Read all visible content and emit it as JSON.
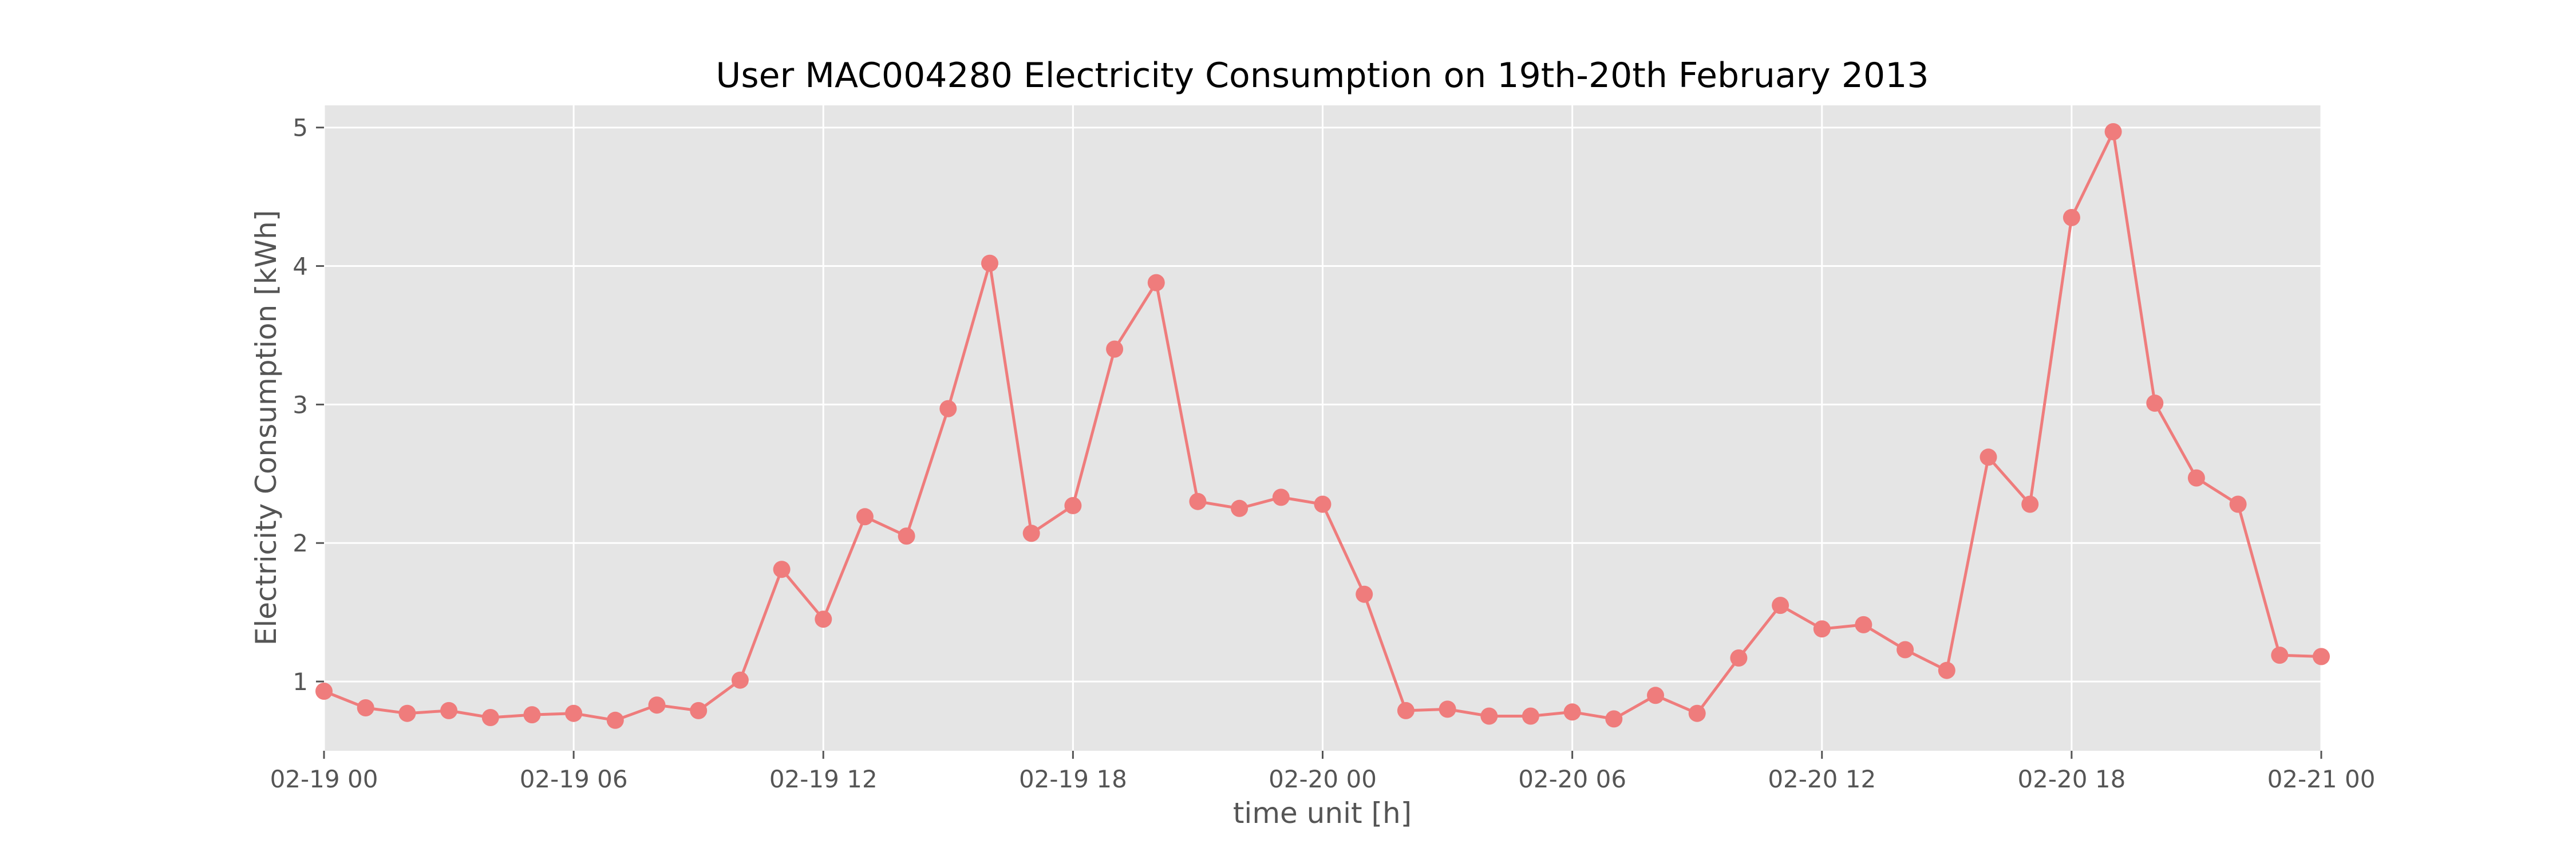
{
  "chart_data": {
    "type": "line",
    "title": "User MAC004280  Electricity Consumption on 19th-20th February 2013",
    "xlabel": "time unit [h]",
    "ylabel": "Electricity Consumption [kWh]",
    "x_unit": "hour",
    "x": [
      "2013-02-19 00:00",
      "2013-02-19 01:00",
      "2013-02-19 02:00",
      "2013-02-19 03:00",
      "2013-02-19 04:00",
      "2013-02-19 05:00",
      "2013-02-19 06:00",
      "2013-02-19 07:00",
      "2013-02-19 08:00",
      "2013-02-19 09:00",
      "2013-02-19 10:00",
      "2013-02-19 11:00",
      "2013-02-19 12:00",
      "2013-02-19 13:00",
      "2013-02-19 14:00",
      "2013-02-19 15:00",
      "2013-02-19 16:00",
      "2013-02-19 17:00",
      "2013-02-19 18:00",
      "2013-02-19 19:00",
      "2013-02-19 20:00",
      "2013-02-19 21:00",
      "2013-02-19 22:00",
      "2013-02-19 23:00",
      "2013-02-20 00:00",
      "2013-02-20 01:00",
      "2013-02-20 02:00",
      "2013-02-20 03:00",
      "2013-02-20 04:00",
      "2013-02-20 05:00",
      "2013-02-20 06:00",
      "2013-02-20 07:00",
      "2013-02-20 08:00",
      "2013-02-20 09:00",
      "2013-02-20 10:00",
      "2013-02-20 11:00",
      "2013-02-20 12:00",
      "2013-02-20 13:00",
      "2013-02-20 14:00",
      "2013-02-20 15:00",
      "2013-02-20 16:00",
      "2013-02-20 17:00",
      "2013-02-20 18:00",
      "2013-02-20 19:00",
      "2013-02-20 20:00",
      "2013-02-20 21:00",
      "2013-02-20 22:00",
      "2013-02-20 23:00",
      "2013-02-21 00:00"
    ],
    "series": [
      {
        "color": "#ef7c7c",
        "marker": "circle",
        "values": [
          0.93,
          0.81,
          0.77,
          0.79,
          0.74,
          0.76,
          0.77,
          0.72,
          0.83,
          0.79,
          1.01,
          1.81,
          1.45,
          2.19,
          2.05,
          2.97,
          4.02,
          2.07,
          2.27,
          3.4,
          3.88,
          2.3,
          2.25,
          2.33,
          2.28,
          1.63,
          0.79,
          0.8,
          0.75,
          0.75,
          0.78,
          0.73,
          0.9,
          0.77,
          1.17,
          1.55,
          1.38,
          1.41,
          1.23,
          1.08,
          2.62,
          2.28,
          4.35,
          4.97,
          3.01,
          2.47,
          2.28,
          1.19,
          1.18
        ]
      }
    ],
    "x_ticks": [
      "02-19 00",
      "02-19 06",
      "02-19 12",
      "02-19 18",
      "02-20 00",
      "02-20 06",
      "02-20 12",
      "02-20 18",
      "02-21 00"
    ],
    "x_tick_hours": [
      0,
      6,
      12,
      18,
      24,
      30,
      36,
      42,
      48
    ],
    "y_ticks": [
      1,
      2,
      3,
      4,
      5
    ],
    "ylim": [
      0.5,
      5.16
    ],
    "xlim": [
      "2013-02-19 00:00",
      "2013-02-21 00:00"
    ],
    "grid": true,
    "legend": "none",
    "background_color": "#e5e5e5"
  }
}
